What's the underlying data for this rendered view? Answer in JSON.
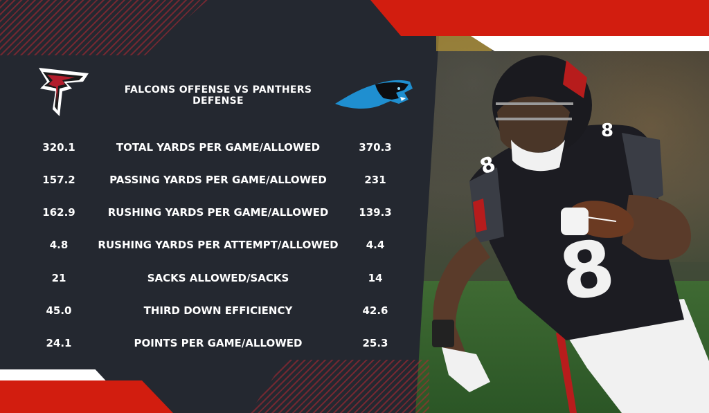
{
  "header": {
    "title": "FALCONS OFFENSE VS PANTHERS DEFENSE"
  },
  "logos": {
    "left": "falcons-logo",
    "right": "panthers-logo"
  },
  "stats": [
    {
      "left": "320.1",
      "label": "TOTAL YARDS PER GAME/ALLOWED",
      "right": "370.3"
    },
    {
      "left": "157.2",
      "label": "PASSING YARDS PER GAME/ALLOWED",
      "right": "231"
    },
    {
      "left": "162.9",
      "label": "RUSHING YARDS PER GAME/ALLOWED",
      "right": "139.3"
    },
    {
      "left": "4.8",
      "label": "RUSHING YARDS PER ATTEMPT/ALLOWED",
      "right": "4.4"
    },
    {
      "left": "21",
      "label": "SACKS ALLOWED/SACKS",
      "right": "14"
    },
    {
      "left": "45.0",
      "label": "THIRD DOWN EFFICIENCY",
      "right": "42.6"
    },
    {
      "left": "24.1",
      "label": "POINTS PER GAME/ALLOWED",
      "right": "25.3"
    }
  ],
  "player": {
    "jersey_number": "8"
  },
  "colors": {
    "navy": "#242830",
    "red": "#d21d0f",
    "white": "#ffffff",
    "panthers_blue": "#1f8fd0"
  }
}
